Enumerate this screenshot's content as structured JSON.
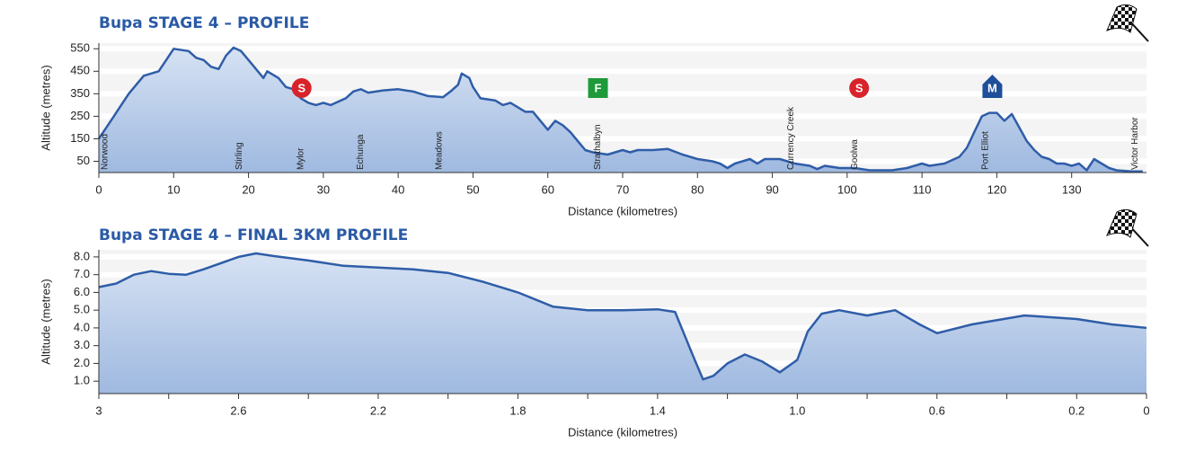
{
  "chart_data": [
    {
      "type": "area",
      "title": "Bupa STAGE 4 – PROFILE",
      "xlabel": "Distance (kilometres)",
      "ylabel": "Altitude (metres)",
      "color": "#2f5da8",
      "xlim": [
        0,
        140
      ],
      "xticks": [
        0,
        10,
        20,
        30,
        40,
        50,
        60,
        70,
        80,
        90,
        100,
        110,
        120,
        130
      ],
      "ylim": [
        0,
        575
      ],
      "yticks": [
        50,
        150,
        250,
        350,
        450,
        550
      ],
      "grid": true,
      "x": [
        0,
        2,
        4,
        6,
        8,
        9,
        10,
        12,
        13,
        14,
        15,
        16,
        17,
        18,
        19,
        20,
        21,
        22,
        22.5,
        24,
        25,
        26,
        27,
        28,
        29,
        30,
        31,
        33,
        34,
        35,
        36,
        38,
        40,
        41,
        42,
        44,
        46,
        47,
        48,
        48.5,
        49.5,
        50,
        51,
        53,
        54,
        55,
        56,
        57,
        58,
        59,
        60,
        61,
        62,
        63,
        64,
        65,
        66,
        68,
        70,
        71,
        72,
        74,
        76,
        78,
        80,
        82,
        83,
        84,
        85,
        86,
        87,
        88,
        89,
        91,
        93,
        95,
        96,
        97,
        99,
        101,
        103,
        106,
        108,
        110,
        111,
        113,
        115,
        116,
        117,
        118,
        119,
        120,
        121,
        122,
        123,
        124,
        125,
        126,
        127,
        128,
        129,
        130,
        131,
        132,
        133,
        134,
        135,
        136,
        138,
        139.5
      ],
      "values": [
        150,
        250,
        350,
        430,
        450,
        500,
        550,
        540,
        510,
        500,
        470,
        460,
        520,
        555,
        540,
        500,
        460,
        420,
        450,
        420,
        380,
        370,
        330,
        310,
        300,
        310,
        300,
        330,
        360,
        370,
        355,
        365,
        370,
        365,
        360,
        340,
        335,
        360,
        390,
        440,
        420,
        380,
        330,
        320,
        300,
        310,
        290,
        270,
        270,
        230,
        190,
        230,
        210,
        180,
        140,
        100,
        90,
        80,
        100,
        90,
        100,
        100,
        105,
        80,
        60,
        50,
        40,
        20,
        40,
        50,
        60,
        40,
        60,
        60,
        40,
        30,
        15,
        30,
        20,
        20,
        10,
        10,
        20,
        40,
        30,
        40,
        70,
        110,
        180,
        250,
        265,
        265,
        230,
        260,
        200,
        140,
        100,
        70,
        60,
        40,
        40,
        30,
        40,
        10,
        60,
        40,
        20,
        10,
        5,
        5
      ],
      "places": [
        {
          "name": "Norwood",
          "x": 0.8
        },
        {
          "name": "Stirling",
          "x": 18.8
        },
        {
          "name": "Mylor",
          "x": 27
        },
        {
          "name": "Echunga",
          "x": 35
        },
        {
          "name": "Meadows",
          "x": 45.5
        },
        {
          "name": "Strathalbyn",
          "x": 66.7
        },
        {
          "name": "Currency Creek",
          "x": 92.5
        },
        {
          "name": "Goolwa",
          "x": 101
        },
        {
          "name": "Port Elliot",
          "x": 118.5
        },
        {
          "name": "Victor Harbor",
          "x": 138.5
        }
      ],
      "markers": [
        {
          "label": "S",
          "x": 27.1,
          "color": "#d8232a",
          "shape": "circle"
        },
        {
          "label": "F",
          "x": 66.7,
          "color": "#1e9a3a",
          "shape": "square"
        },
        {
          "label": "S",
          "x": 101.6,
          "color": "#d8232a",
          "shape": "circle"
        },
        {
          "label": "M",
          "x": 119.4,
          "color": "#1f4e9a",
          "shape": "house"
        }
      ]
    },
    {
      "type": "area",
      "title": "Bupa STAGE 4 – FINAL 3KM PROFILE",
      "xlabel": "Distance (kilometres)",
      "ylabel": "Altitude (metres)",
      "color": "#2f5da8",
      "xlim": [
        3,
        0
      ],
      "xticks": [
        3,
        2.8,
        2.6,
        2.4,
        2.2,
        2,
        1.8,
        1.6,
        1.4,
        1.2,
        {
          "value": 1,
          "label": "1.0"
        },
        0.8,
        0.6,
        0.4,
        0.2,
        0
      ],
      "xtick_labels_every": 2,
      "ylim": [
        0.3,
        8.4
      ],
      "yticks": [
        {
          "value": 1,
          "label": "1.0"
        },
        {
          "value": 2,
          "label": "2.0"
        },
        {
          "value": 3,
          "label": "3.0"
        },
        {
          "value": 4,
          "label": "4.0"
        },
        {
          "value": 5,
          "label": "5.0"
        },
        {
          "value": 6,
          "label": "6.0"
        },
        {
          "value": 7,
          "label": "7.0"
        },
        {
          "value": 8,
          "label": "8.0"
        }
      ],
      "grid": true,
      "x": [
        3,
        2.95,
        2.9,
        2.85,
        2.8,
        2.75,
        2.7,
        2.6,
        2.55,
        2.5,
        2.4,
        2.3,
        2.2,
        2.1,
        2,
        1.9,
        1.8,
        1.7,
        1.6,
        1.5,
        1.4,
        1.35,
        1.3,
        1.27,
        1.24,
        1.2,
        1.15,
        1.1,
        1.05,
        1,
        0.97,
        0.93,
        0.88,
        0.8,
        0.72,
        0.65,
        0.6,
        0.5,
        0.35,
        0.2,
        0.1,
        0
      ],
      "values": [
        6.3,
        6.5,
        7.0,
        7.2,
        7.05,
        7.0,
        7.3,
        8.0,
        8.2,
        8.05,
        7.8,
        7.5,
        7.4,
        7.3,
        7.1,
        6.6,
        6.0,
        5.2,
        5.0,
        5.0,
        5.05,
        4.9,
        2.5,
        1.1,
        1.3,
        2.0,
        2.5,
        2.1,
        1.5,
        2.2,
        3.8,
        4.8,
        5.0,
        4.7,
        5.0,
        4.2,
        3.7,
        4.2,
        4.7,
        4.5,
        4.2,
        4.0
      ]
    }
  ]
}
